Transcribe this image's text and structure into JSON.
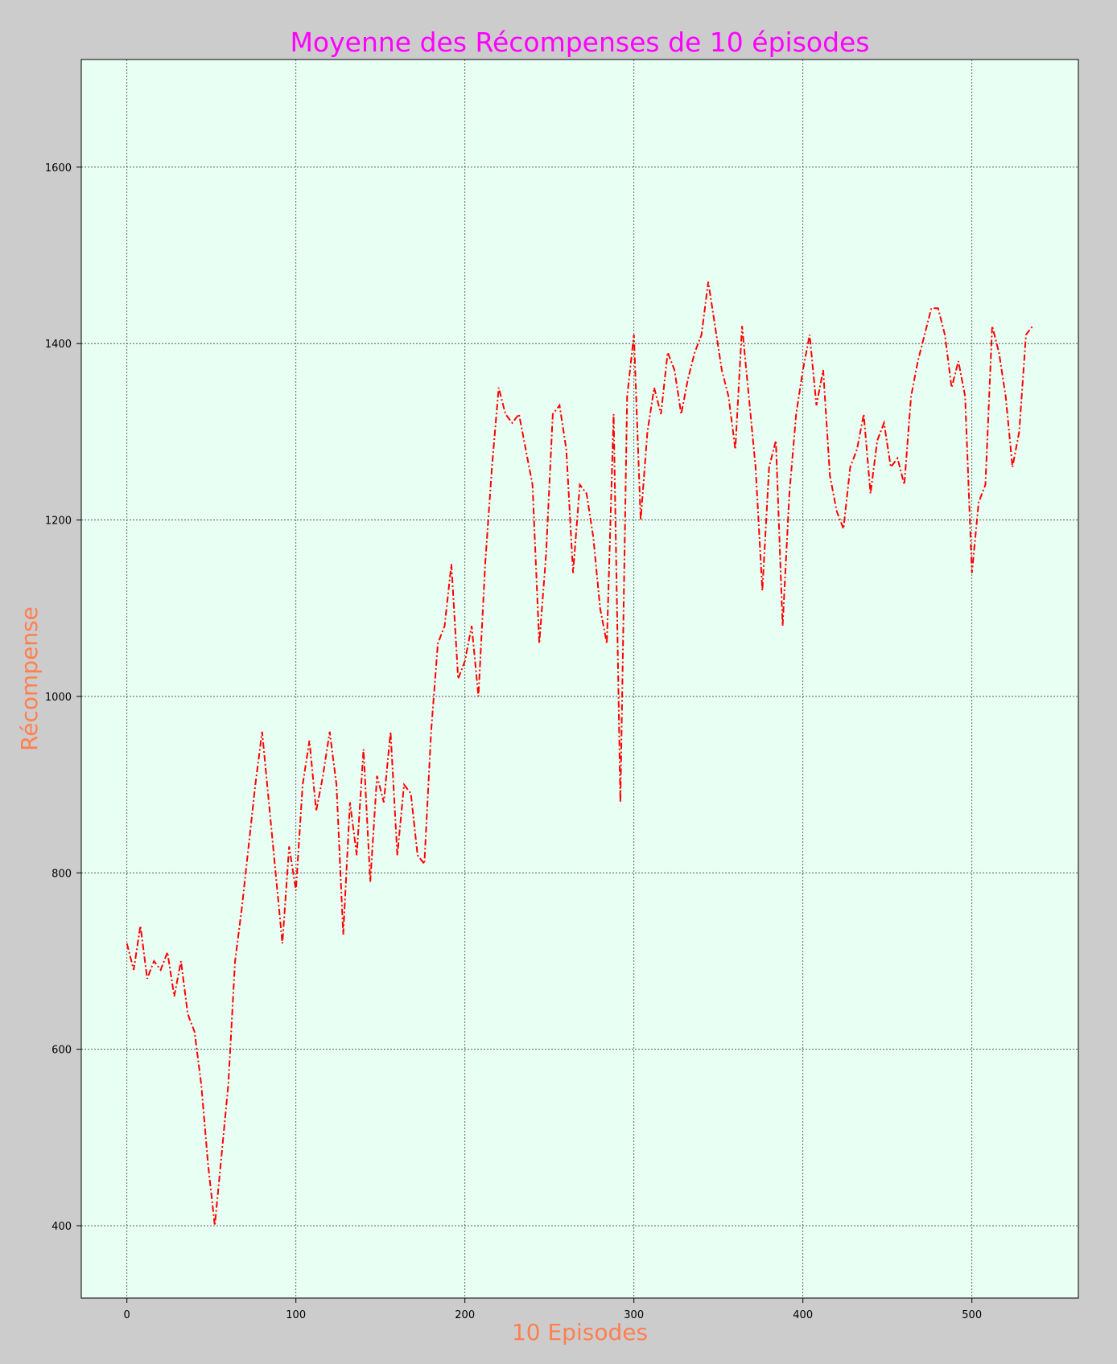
{
  "chart_data": {
    "type": "line",
    "title": "Moyenne des Récompenses de 10 épisodes",
    "xlabel": "10 Episodes",
    "ylabel": "Récompense",
    "xlim": [
      -27,
      563
    ],
    "ylim": [
      318,
      1722
    ],
    "xticks": [
      0,
      100,
      200,
      300,
      400,
      500
    ],
    "yticks": [
      400,
      600,
      800,
      1000,
      1200,
      1400,
      1600
    ],
    "grid": true,
    "colors": {
      "figure_bg": "#cccccc",
      "plot_bg": "#e8fff4",
      "line": "#ff0000",
      "title": "#ff00ff",
      "axis_label": "#ff7f50"
    },
    "series": [
      {
        "line_style": "dash-dot",
        "x": [
          0,
          4,
          8,
          12,
          16,
          20,
          24,
          28,
          32,
          36,
          40,
          44,
          48,
          52,
          56,
          60,
          64,
          68,
          72,
          76,
          80,
          84,
          88,
          92,
          96,
          100,
          104,
          108,
          112,
          116,
          120,
          124,
          128,
          132,
          136,
          140,
          144,
          148,
          152,
          156,
          160,
          164,
          168,
          172,
          176,
          180,
          184,
          188,
          192,
          196,
          200,
          204,
          208,
          212,
          216,
          220,
          224,
          228,
          232,
          236,
          240,
          244,
          248,
          252,
          256,
          260,
          264,
          268,
          272,
          276,
          280,
          284,
          288,
          292,
          296,
          300,
          304,
          308,
          312,
          316,
          320,
          324,
          328,
          332,
          336,
          340,
          344,
          348,
          352,
          356,
          360,
          364,
          368,
          372,
          376,
          380,
          384,
          388,
          392,
          396,
          400,
          404,
          408,
          412,
          416,
          420,
          424,
          428,
          432,
          436,
          440,
          444,
          448,
          452,
          456,
          460,
          464,
          468,
          472,
          476,
          480,
          484,
          488,
          492,
          496,
          500,
          504,
          508,
          512,
          516,
          520,
          524,
          528,
          532,
          536
        ],
        "values": [
          720,
          690,
          740,
          680,
          700,
          690,
          710,
          660,
          700,
          640,
          620,
          560,
          470,
          400,
          480,
          560,
          700,
          760,
          830,
          900,
          960,
          880,
          800,
          720,
          830,
          780,
          900,
          950,
          870,
          910,
          960,
          900,
          730,
          880,
          820,
          940,
          790,
          910,
          880,
          960,
          820,
          900,
          890,
          820,
          810,
          960,
          1060,
          1080,
          1150,
          1020,
          1040,
          1080,
          1000,
          1150,
          1260,
          1350,
          1320,
          1310,
          1320,
          1280,
          1240,
          1060,
          1160,
          1320,
          1330,
          1280,
          1140,
          1240,
          1230,
          1180,
          1100,
          1060,
          1320,
          880,
          1340,
          1410,
          1200,
          1300,
          1350,
          1320,
          1390,
          1370,
          1320,
          1360,
          1390,
          1410,
          1470,
          1420,
          1370,
          1340,
          1280,
          1420,
          1340,
          1260,
          1120,
          1260,
          1290,
          1080,
          1230,
          1320,
          1370,
          1410,
          1330,
          1370,
          1250,
          1210,
          1190,
          1260,
          1280,
          1320,
          1230,
          1290,
          1310,
          1260,
          1270,
          1240,
          1340,
          1380,
          1410,
          1440,
          1440,
          1410,
          1350,
          1380,
          1340,
          1140,
          1220,
          1240,
          1420,
          1390,
          1340,
          1260,
          1300,
          1410,
          1420
        ]
      }
    ]
  }
}
